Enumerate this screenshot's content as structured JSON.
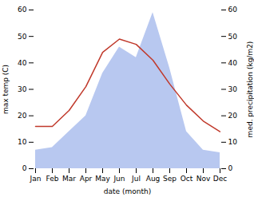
{
  "chart_data": {
    "type": "line",
    "xlabel": "date (month)",
    "ylabel": "max temp (C)",
    "y2label": "med. precipitation (kg/m2)",
    "categories": [
      "Jan",
      "Feb",
      "Mar",
      "Apr",
      "May",
      "Jun",
      "Jul",
      "Aug",
      "Sep",
      "Oct",
      "Nov",
      "Dec"
    ],
    "series": [
      {
        "type": "area",
        "axis": "y2",
        "color": "#b8c8f0",
        "values": [
          7,
          8,
          14,
          20,
          36,
          46,
          42,
          59,
          38,
          14,
          7,
          6
        ]
      },
      {
        "type": "line",
        "color": "#c0392b",
        "values": [
          16,
          16,
          22,
          31,
          44,
          49,
          47,
          41,
          32,
          24,
          18,
          14
        ]
      }
    ],
    "ylim": [
      0,
      60
    ],
    "yticks": [
      0,
      10,
      20,
      30,
      40,
      50,
      60
    ],
    "y2lim": [
      0,
      60
    ],
    "y2ticks": [
      0,
      10,
      20,
      30,
      40,
      50,
      60
    ],
    "grid": false
  }
}
